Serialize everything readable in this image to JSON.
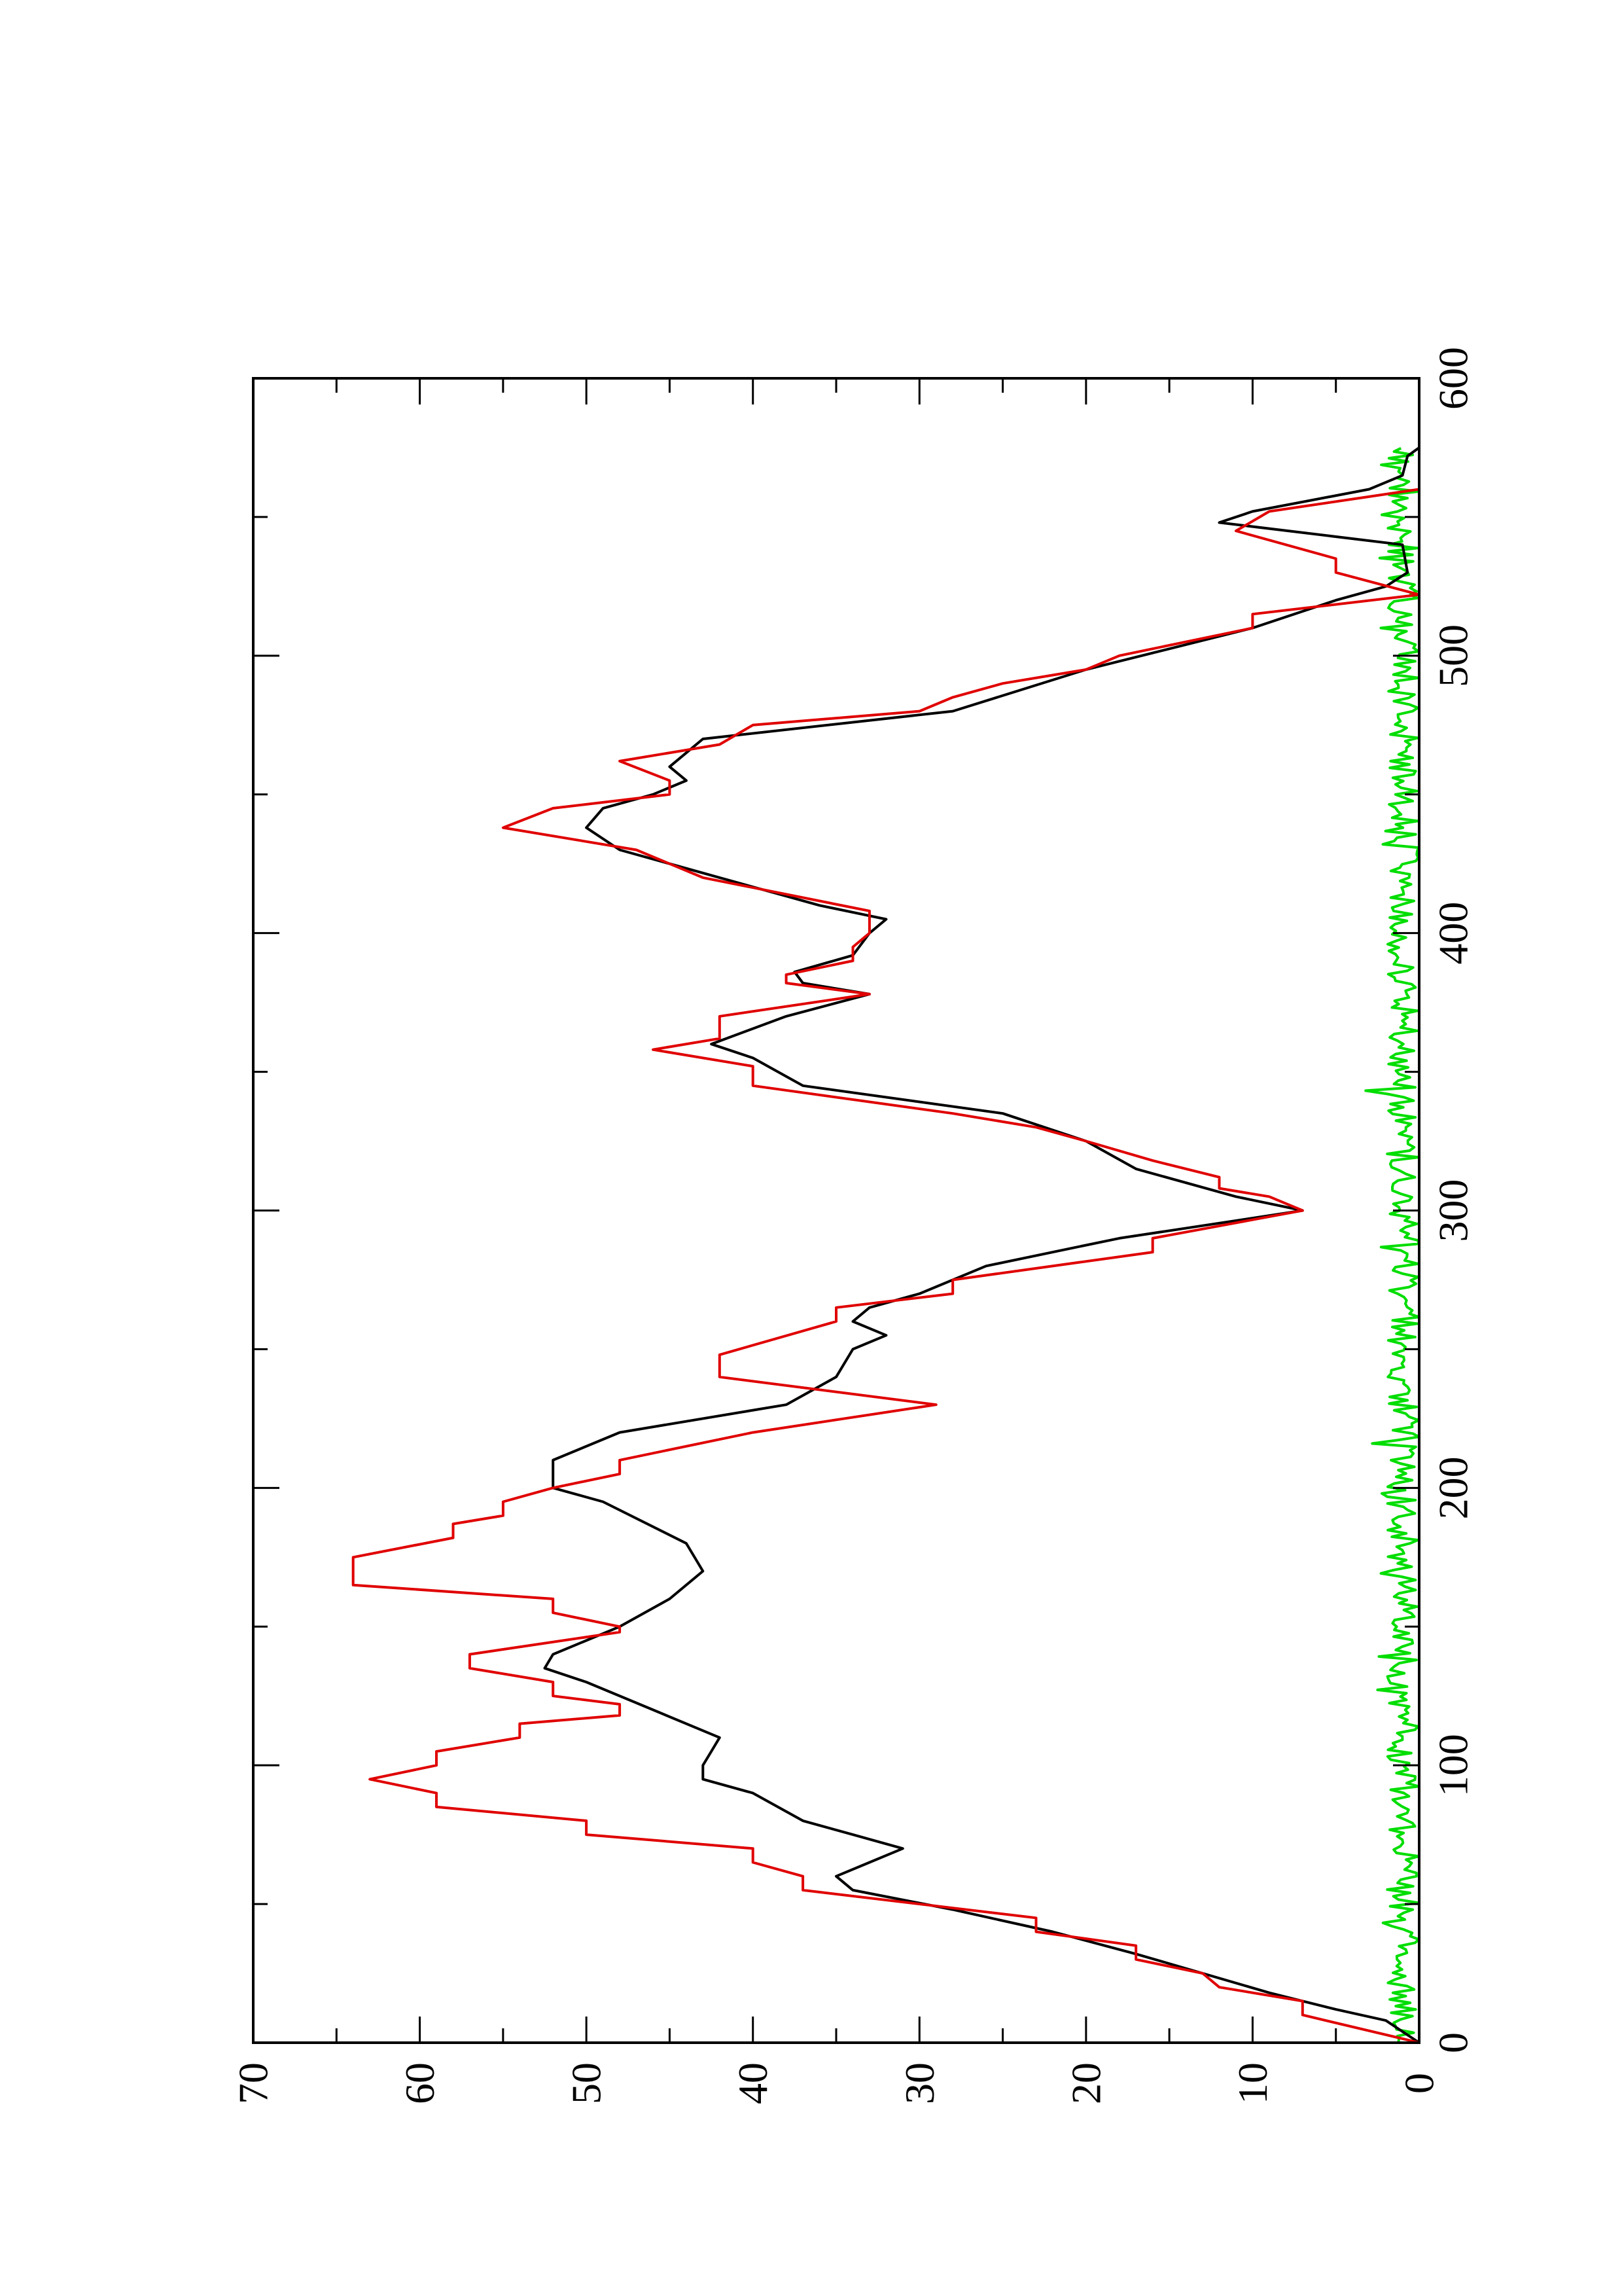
{
  "chart_data": {
    "type": "line",
    "orientation": "rotated 90 degrees counter-clockwise",
    "title": "",
    "xlabel": "",
    "ylabel": "",
    "xlim": [
      0,
      600
    ],
    "ylim": [
      0,
      70
    ],
    "x_ticks": [
      "0",
      "100",
      "200",
      "300",
      "400",
      "500",
      "600"
    ],
    "y_ticks": [
      "0",
      "10",
      "20",
      "30",
      "40",
      "50",
      "60",
      "70"
    ],
    "colors": {
      "black_series": "#000000",
      "red_series": "#e00000",
      "green_series": "#00dd00"
    },
    "series": [
      {
        "color": "#000000",
        "style": "smooth",
        "points": [
          [
            0,
            0
          ],
          [
            8,
            2
          ],
          [
            12,
            5
          ],
          [
            18,
            9
          ],
          [
            25,
            13
          ],
          [
            32,
            17
          ],
          [
            40,
            22
          ],
          [
            48,
            28
          ],
          [
            55,
            34
          ],
          [
            60,
            35
          ],
          [
            65,
            33
          ],
          [
            70,
            31
          ],
          [
            75,
            34
          ],
          [
            80,
            37
          ],
          [
            90,
            40
          ],
          [
            95,
            43
          ],
          [
            100,
            43
          ],
          [
            105,
            42.5
          ],
          [
            110,
            42
          ],
          [
            120,
            46
          ],
          [
            130,
            50
          ],
          [
            135,
            52.5
          ],
          [
            140,
            52
          ],
          [
            150,
            48
          ],
          [
            160,
            45
          ],
          [
            170,
            43
          ],
          [
            180,
            44
          ],
          [
            195,
            49
          ],
          [
            200,
            52
          ],
          [
            210,
            52
          ],
          [
            220,
            48
          ],
          [
            230,
            38
          ],
          [
            240,
            35
          ],
          [
            250,
            34
          ],
          [
            255,
            32
          ],
          [
            260,
            34
          ],
          [
            265,
            33
          ],
          [
            270,
            30
          ],
          [
            280,
            26
          ],
          [
            290,
            18
          ],
          [
            300,
            7
          ],
          [
            305,
            11
          ],
          [
            315,
            17
          ],
          [
            325,
            20
          ],
          [
            335,
            25
          ],
          [
            345,
            37
          ],
          [
            355,
            40
          ],
          [
            360,
            42.5
          ],
          [
            370,
            38
          ],
          [
            378,
            33
          ],
          [
            382,
            37
          ],
          [
            386,
            37.5
          ],
          [
            392,
            34
          ],
          [
            400,
            33
          ],
          [
            405,
            32
          ],
          [
            410,
            36
          ],
          [
            420,
            42
          ],
          [
            430,
            48
          ],
          [
            438,
            50
          ],
          [
            445,
            49
          ],
          [
            450,
            46
          ],
          [
            455,
            44
          ],
          [
            460,
            45
          ],
          [
            465,
            44
          ],
          [
            470,
            43
          ],
          [
            480,
            28
          ],
          [
            495,
            20
          ],
          [
            510,
            10
          ],
          [
            520,
            5
          ],
          [
            525,
            2
          ],
          [
            530,
            0.7
          ],
          [
            540,
            1
          ],
          [
            548,
            12
          ],
          [
            552,
            10
          ],
          [
            560,
            3
          ],
          [
            565,
            1
          ],
          [
            572,
            0.7
          ],
          [
            575,
            0
          ]
        ]
      },
      {
        "color": "#e00000",
        "style": "step",
        "points": [
          [
            0,
            0
          ],
          [
            10,
            7
          ],
          [
            15,
            7
          ],
          [
            20,
            12
          ],
          [
            25,
            13
          ],
          [
            30,
            17
          ],
          [
            35,
            17
          ],
          [
            40,
            23
          ],
          [
            45,
            23
          ],
          [
            55,
            37
          ],
          [
            60,
            37
          ],
          [
            65,
            40
          ],
          [
            70,
            40
          ],
          [
            75,
            50
          ],
          [
            80,
            50
          ],
          [
            85,
            59
          ],
          [
            90,
            59
          ],
          [
            95,
            63
          ],
          [
            100,
            59
          ],
          [
            105,
            59
          ],
          [
            110,
            54
          ],
          [
            115,
            54
          ],
          [
            118,
            48
          ],
          [
            122,
            48
          ],
          [
            125,
            52
          ],
          [
            130,
            52
          ],
          [
            135,
            57
          ],
          [
            140,
            57
          ],
          [
            148,
            48
          ],
          [
            150,
            48
          ],
          [
            155,
            52
          ],
          [
            160,
            52
          ],
          [
            165,
            64
          ],
          [
            175,
            64
          ],
          [
            182,
            58
          ],
          [
            187,
            58
          ],
          [
            190,
            55
          ],
          [
            195,
            55
          ],
          [
            200,
            52
          ],
          [
            205,
            48
          ],
          [
            210,
            48
          ],
          [
            220,
            40
          ],
          [
            230,
            29
          ],
          [
            240,
            42
          ],
          [
            248,
            42
          ],
          [
            260,
            35
          ],
          [
            265,
            35
          ],
          [
            270,
            28
          ],
          [
            275,
            28
          ],
          [
            285,
            16
          ],
          [
            290,
            16
          ],
          [
            300,
            7
          ],
          [
            305,
            9
          ],
          [
            308,
            12
          ],
          [
            312,
            12
          ],
          [
            318,
            16
          ],
          [
            325,
            20
          ],
          [
            330,
            23
          ],
          [
            335,
            28
          ],
          [
            345,
            40
          ],
          [
            352,
            40
          ],
          [
            358,
            46
          ],
          [
            362,
            42
          ],
          [
            370,
            42
          ],
          [
            378,
            33
          ],
          [
            382,
            38
          ],
          [
            385,
            38
          ],
          [
            390,
            34
          ],
          [
            395,
            34
          ],
          [
            400,
            33
          ],
          [
            408,
            33
          ],
          [
            420,
            43
          ],
          [
            430,
            47
          ],
          [
            438,
            55
          ],
          [
            445,
            52
          ],
          [
            450,
            45
          ],
          [
            455,
            45
          ],
          [
            462,
            48
          ],
          [
            468,
            42
          ],
          [
            475,
            40
          ],
          [
            480,
            30
          ],
          [
            485,
            28
          ],
          [
            490,
            25
          ],
          [
            495,
            20
          ],
          [
            500,
            18
          ],
          [
            510,
            10
          ],
          [
            515,
            10
          ],
          [
            522,
            0
          ],
          [
            530,
            5
          ],
          [
            535,
            5
          ],
          [
            545,
            11
          ],
          [
            552,
            9
          ],
          [
            560,
            0
          ],
          [
            575,
            0
          ]
        ]
      },
      {
        "color": "#00dd00",
        "style": "noisy",
        "points_note": "",
        "amplitude": 1.2,
        "x_range": [
          0,
          575
        ]
      }
    ]
  }
}
